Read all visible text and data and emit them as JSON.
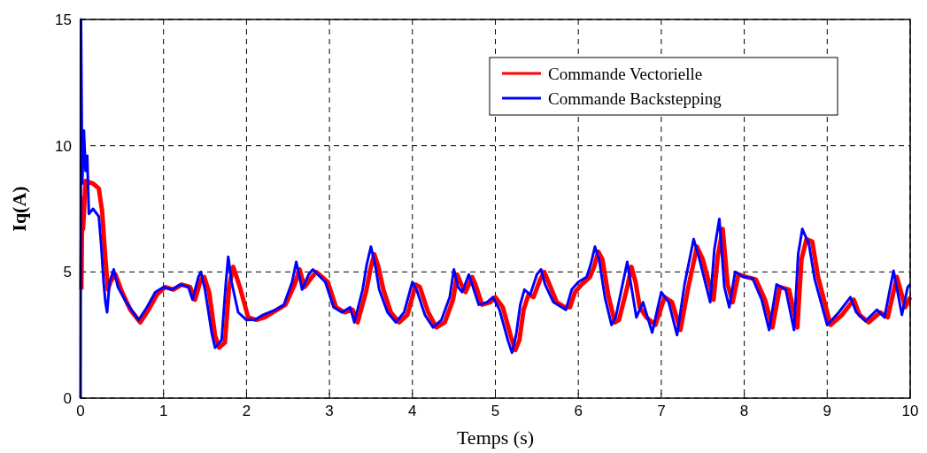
{
  "chart_data": {
    "type": "line",
    "xlabel": "Temps (s)",
    "ylabel": "Iq(A)",
    "xlim": [
      0,
      10
    ],
    "ylim": [
      0,
      15
    ],
    "xticks": [
      0,
      1,
      2,
      3,
      4,
      5,
      6,
      7,
      8,
      9,
      10
    ],
    "yticks": [
      0,
      5,
      10,
      15
    ],
    "grid": true,
    "legend": "top right",
    "marker": "none",
    "line_style": "solid",
    "series": [
      {
        "name": "Commande Vectorielle",
        "color": "#ff0000",
        "x": [
          0.01,
          0.02,
          0.03,
          0.06,
          0.15,
          0.22,
          0.26,
          0.3,
          0.33,
          0.36,
          0.42,
          0.5,
          0.6,
          0.72,
          0.82,
          0.92,
          1.02,
          1.12,
          1.22,
          1.32,
          1.38,
          1.45,
          1.49,
          1.55,
          1.62,
          1.67,
          1.74,
          1.79,
          1.84,
          1.92,
          2.02,
          2.12,
          2.22,
          2.37,
          2.47,
          2.58,
          2.64,
          2.7,
          2.79,
          2.84,
          2.98,
          3.08,
          3.18,
          3.28,
          3.34,
          3.44,
          3.5,
          3.54,
          3.59,
          3.65,
          3.74,
          3.84,
          3.94,
          4.04,
          4.09,
          4.19,
          4.29,
          4.39,
          4.49,
          4.54,
          4.59,
          4.64,
          4.72,
          4.76,
          4.84,
          4.94,
          5.0,
          5.09,
          5.19,
          5.24,
          5.29,
          5.34,
          5.4,
          5.46,
          5.54,
          5.59,
          5.64,
          5.74,
          5.84,
          5.9,
          5.96,
          6.04,
          6.14,
          6.19,
          6.24,
          6.29,
          6.36,
          6.44,
          6.49,
          6.59,
          6.64,
          6.69,
          6.74,
          6.82,
          6.93,
          7.04,
          7.13,
          7.23,
          7.32,
          7.43,
          7.5,
          7.63,
          7.68,
          7.74,
          7.8,
          7.86,
          7.93,
          8.03,
          8.14,
          8.25,
          8.34,
          8.43,
          8.54,
          8.64,
          8.69,
          8.75,
          8.82,
          8.89,
          9.04,
          9.18,
          9.32,
          9.39,
          9.5,
          9.64,
          9.73,
          9.84,
          9.94,
          10
        ],
        "values": [
          4.3,
          7.9,
          6.7,
          8.6,
          8.5,
          8.3,
          7.4,
          5.5,
          4.3,
          4.6,
          4.9,
          4.2,
          3.5,
          3.0,
          3.5,
          4.1,
          4.4,
          4.3,
          4.5,
          4.4,
          3.9,
          4.7,
          4.8,
          4.2,
          2.5,
          2.0,
          2.2,
          4.4,
          5.2,
          4.4,
          3.2,
          3.1,
          3.2,
          3.5,
          3.7,
          4.5,
          5.1,
          4.4,
          4.8,
          5.0,
          4.6,
          3.6,
          3.4,
          3.5,
          3.0,
          4.2,
          5.2,
          5.7,
          5.2,
          4.3,
          3.4,
          3.0,
          3.3,
          4.5,
          4.4,
          3.4,
          2.8,
          3.0,
          3.9,
          4.9,
          4.5,
          4.2,
          4.8,
          4.5,
          3.7,
          3.8,
          4.0,
          3.6,
          2.4,
          1.9,
          2.3,
          3.5,
          4.1,
          4.0,
          4.7,
          5.0,
          4.6,
          3.8,
          3.6,
          3.6,
          4.2,
          4.5,
          4.8,
          5.2,
          5.8,
          5.5,
          4.1,
          3.0,
          3.1,
          4.4,
          5.2,
          4.6,
          3.6,
          3.2,
          2.9,
          4.0,
          3.8,
          2.7,
          4.3,
          6.0,
          5.5,
          3.9,
          5.6,
          6.7,
          4.5,
          3.8,
          4.9,
          4.8,
          4.7,
          3.9,
          2.8,
          4.4,
          4.3,
          2.8,
          5.5,
          6.3,
          6.2,
          4.8,
          2.9,
          3.3,
          3.9,
          3.3,
          3.0,
          3.4,
          3.2,
          4.8,
          3.6,
          4.0
        ]
      },
      {
        "name": "Commande Backstepping",
        "color": "#0000ff",
        "x": [
          0,
          0.005,
          0.02,
          0.04,
          0.06,
          0.08,
          0.1,
          0.15,
          0.22,
          0.25,
          0.28,
          0.3,
          0.32,
          0.35,
          0.4,
          0.45,
          0.55,
          0.7,
          0.8,
          0.9,
          1.0,
          1.1,
          1.2,
          1.3,
          1.35,
          1.42,
          1.45,
          1.5,
          1.58,
          1.62,
          1.7,
          1.75,
          1.78,
          1.82,
          1.9,
          2.0,
          2.1,
          2.2,
          2.35,
          2.45,
          2.55,
          2.6,
          2.67,
          2.75,
          2.8,
          2.95,
          3.05,
          3.15,
          3.25,
          3.3,
          3.4,
          3.45,
          3.5,
          3.55,
          3.6,
          3.7,
          3.8,
          3.9,
          4.0,
          4.05,
          4.15,
          4.25,
          4.35,
          4.45,
          4.5,
          4.55,
          4.6,
          4.68,
          4.72,
          4.8,
          4.9,
          4.97,
          5.05,
          5.15,
          5.2,
          5.25,
          5.3,
          5.35,
          5.42,
          5.5,
          5.55,
          5.6,
          5.7,
          5.8,
          5.85,
          5.92,
          6.0,
          6.1,
          6.15,
          6.2,
          6.25,
          6.32,
          6.4,
          6.45,
          6.59,
          6.7,
          6.78,
          6.89,
          7.0,
          7.09,
          7.19,
          7.28,
          7.39,
          7.46,
          7.59,
          7.64,
          7.7,
          7.76,
          7.82,
          7.89,
          7.99,
          8.1,
          8.21,
          8.3,
          8.39,
          8.5,
          8.6,
          8.65,
          8.7,
          8.78,
          8.85,
          9.0,
          9.14,
          9.28,
          9.35,
          9.46,
          9.6,
          9.69,
          9.8,
          9.9,
          9.97,
          10
        ],
        "values": [
          0,
          15,
          8.5,
          10.6,
          9,
          9.6,
          7.3,
          7.5,
          7.2,
          6,
          4.5,
          3.8,
          3.4,
          4.6,
          5.1,
          4.4,
          3.8,
          3.1,
          3.6,
          4.2,
          4.4,
          4.3,
          4.5,
          4.4,
          3.9,
          4.8,
          5.0,
          4.3,
          2.6,
          2.0,
          2.3,
          4.5,
          5.6,
          4.6,
          3.4,
          3.1,
          3.1,
          3.3,
          3.5,
          3.7,
          4.6,
          5.4,
          4.3,
          4.9,
          5.1,
          4.6,
          3.6,
          3.4,
          3.6,
          3.0,
          4.3,
          5.3,
          6.0,
          5.3,
          4.3,
          3.4,
          3.0,
          3.4,
          4.6,
          4.3,
          3.3,
          2.8,
          3.1,
          4.0,
          5.1,
          4.4,
          4.2,
          4.9,
          4.5,
          3.7,
          3.8,
          4.0,
          3.5,
          2.3,
          1.8,
          2.5,
          3.7,
          4.3,
          4.1,
          4.9,
          5.1,
          4.5,
          3.8,
          3.6,
          3.5,
          4.3,
          4.6,
          4.8,
          5.3,
          6.0,
          5.5,
          4.0,
          2.9,
          3.2,
          5.4,
          3.2,
          3.8,
          2.6,
          4.2,
          3.8,
          2.5,
          4.5,
          6.3,
          5.5,
          3.8,
          5.9,
          7.1,
          4.4,
          3.6,
          5.0,
          4.8,
          4.75,
          3.9,
          2.7,
          4.5,
          4.3,
          2.7,
          5.7,
          6.7,
          6.1,
          4.7,
          2.9,
          3.4,
          4.0,
          3.4,
          3.05,
          3.5,
          3.2,
          5.05,
          3.3,
          4.4,
          4.5
        ]
      }
    ]
  }
}
